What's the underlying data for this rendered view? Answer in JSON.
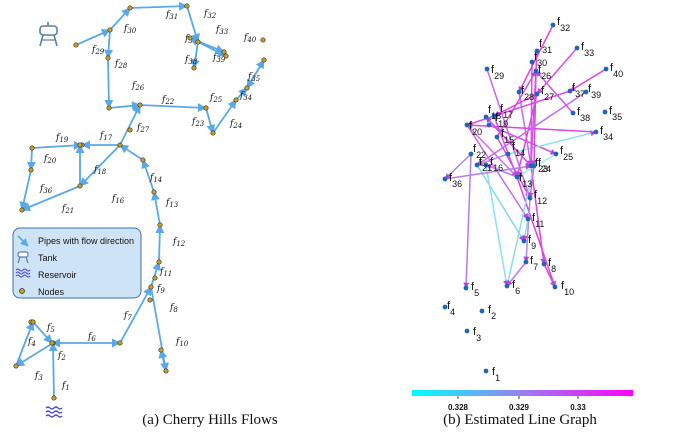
{
  "panel_a": {
    "caption": "(a) Cherry Hills Flows",
    "legend": {
      "pipes": "Pipes with flow direction",
      "tank": "Tank",
      "reservoir": "Reservoir",
      "nodes": "Nodes"
    },
    "edge_labels": [
      {
        "name": "f",
        "sub": "1"
      },
      {
        "name": "f",
        "sub": "2"
      },
      {
        "name": "f",
        "sub": "3"
      },
      {
        "name": "f",
        "sub": "4"
      },
      {
        "name": "f",
        "sub": "5"
      },
      {
        "name": "f",
        "sub": "6"
      },
      {
        "name": "f",
        "sub": "7"
      },
      {
        "name": "f",
        "sub": "8"
      },
      {
        "name": "f",
        "sub": "9"
      },
      {
        "name": "f",
        "sub": "10"
      },
      {
        "name": "f",
        "sub": "11"
      },
      {
        "name": "f",
        "sub": "12"
      },
      {
        "name": "f",
        "sub": "13"
      },
      {
        "name": "f",
        "sub": "14"
      },
      {
        "name": "f",
        "sub": "15"
      },
      {
        "name": "f",
        "sub": "16"
      },
      {
        "name": "f",
        "sub": "17"
      },
      {
        "name": "f",
        "sub": "18"
      },
      {
        "name": "f",
        "sub": "19"
      },
      {
        "name": "f",
        "sub": "20"
      },
      {
        "name": "f",
        "sub": "21"
      },
      {
        "name": "f",
        "sub": "22"
      },
      {
        "name": "f",
        "sub": "23"
      },
      {
        "name": "f",
        "sub": "24"
      },
      {
        "name": "f",
        "sub": "25"
      },
      {
        "name": "f",
        "sub": "26"
      },
      {
        "name": "f",
        "sub": "27"
      },
      {
        "name": "f",
        "sub": "28"
      },
      {
        "name": "f",
        "sub": "29"
      },
      {
        "name": "f",
        "sub": "30"
      },
      {
        "name": "f",
        "sub": "31"
      },
      {
        "name": "f",
        "sub": "32"
      },
      {
        "name": "f",
        "sub": "33"
      },
      {
        "name": "f",
        "sub": "34"
      },
      {
        "name": "f",
        "sub": "35"
      },
      {
        "name": "f",
        "sub": "36"
      },
      {
        "name": "f",
        "sub": "37"
      },
      {
        "name": "f",
        "sub": "38"
      },
      {
        "name": "f",
        "sub": "39"
      },
      {
        "name": "f",
        "sub": "40"
      }
    ],
    "colors": {
      "pipe": "#5aa8e6",
      "node": "#c8a028",
      "legend_bg": "#cfe3f7",
      "reservoir": "#4a4ad6"
    }
  },
  "panel_b": {
    "caption": "(b) Estimated Line Graph",
    "node_labels": [
      {
        "name": "f",
        "sub": "1"
      },
      {
        "name": "f",
        "sub": "2"
      },
      {
        "name": "f",
        "sub": "3"
      },
      {
        "name": "f",
        "sub": "4"
      },
      {
        "name": "f",
        "sub": "5"
      },
      {
        "name": "f",
        "sub": "6"
      },
      {
        "name": "f",
        "sub": "7"
      },
      {
        "name": "f",
        "sub": "8"
      },
      {
        "name": "f",
        "sub": "9"
      },
      {
        "name": "f",
        "sub": "10"
      },
      {
        "name": "f",
        "sub": "11"
      },
      {
        "name": "f",
        "sub": "12"
      },
      {
        "name": "f",
        "sub": "13"
      },
      {
        "name": "f",
        "sub": "14"
      },
      {
        "name": "f",
        "sub": "15"
      },
      {
        "name": "f",
        "sub": "16"
      },
      {
        "name": "f",
        "sub": "17"
      },
      {
        "name": "f",
        "sub": "18"
      },
      {
        "name": "f",
        "sub": "19"
      },
      {
        "name": "f",
        "sub": "20"
      },
      {
        "name": "f",
        "sub": "21"
      },
      {
        "name": "f",
        "sub": "22"
      },
      {
        "name": "f",
        "sub": "23"
      },
      {
        "name": "f",
        "sub": "24"
      },
      {
        "name": "f",
        "sub": "25"
      },
      {
        "name": "f",
        "sub": "26"
      },
      {
        "name": "f",
        "sub": "27"
      },
      {
        "name": "f",
        "sub": "28"
      },
      {
        "name": "f",
        "sub": "29"
      },
      {
        "name": "f",
        "sub": "30"
      },
      {
        "name": "f",
        "sub": "31"
      },
      {
        "name": "f",
        "sub": "32"
      },
      {
        "name": "f",
        "sub": "33"
      },
      {
        "name": "f",
        "sub": "34"
      },
      {
        "name": "f",
        "sub": "35"
      },
      {
        "name": "f",
        "sub": "36"
      },
      {
        "name": "f",
        "sub": "37"
      },
      {
        "name": "f",
        "sub": "38"
      },
      {
        "name": "f",
        "sub": "39"
      },
      {
        "name": "f",
        "sub": "40"
      }
    ],
    "colorbar": {
      "ticks": [
        "0.328",
        "0.329",
        "0.33"
      ],
      "colors": [
        "#00ffff",
        "#ff00ff"
      ]
    },
    "colors": {
      "node": "#1f66b8"
    }
  }
}
